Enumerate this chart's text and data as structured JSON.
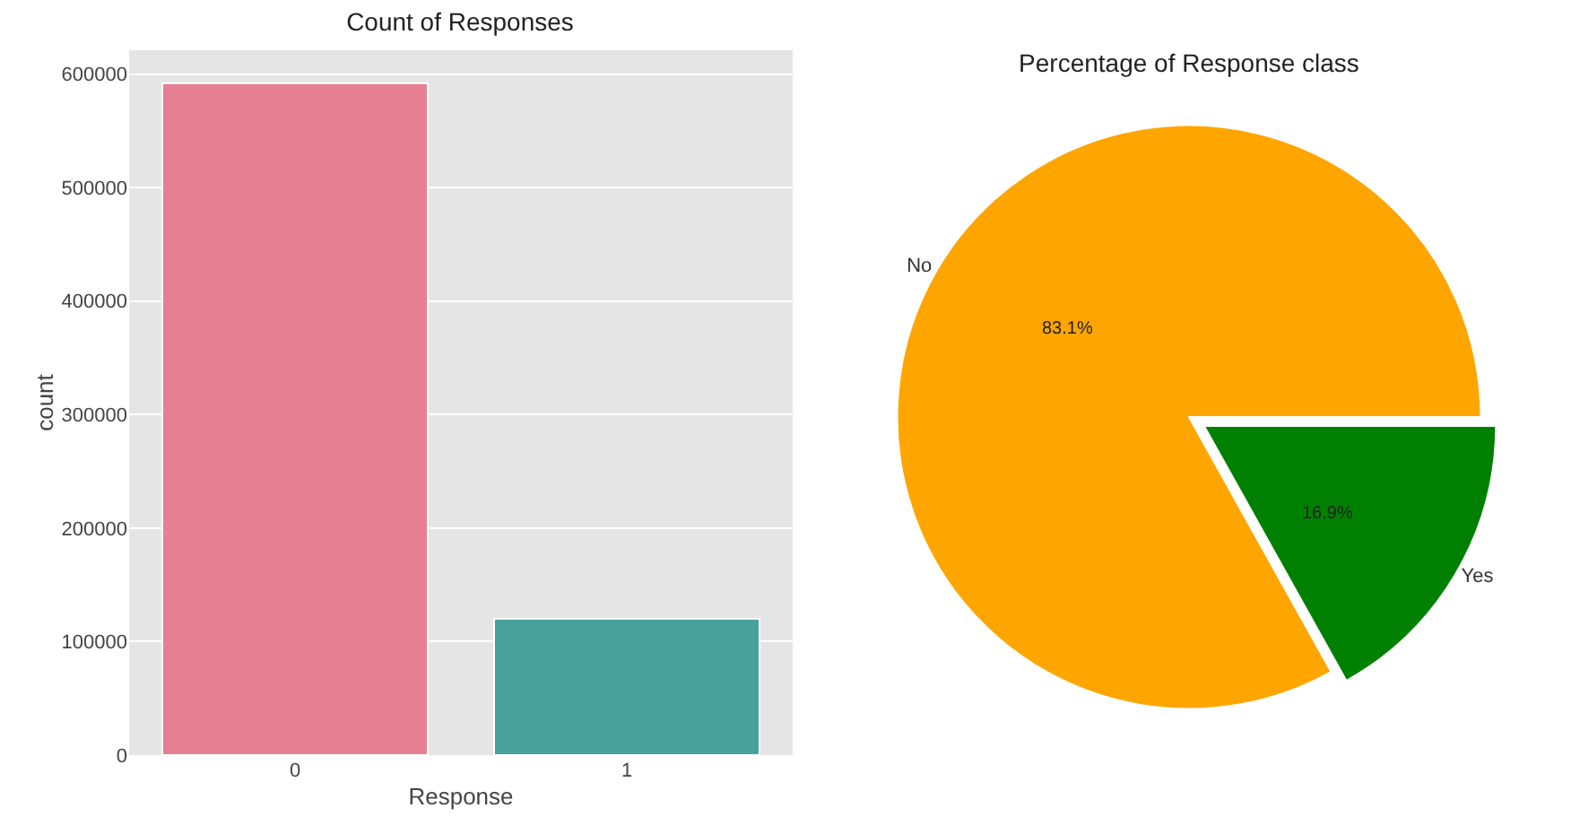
{
  "chart_data": [
    {
      "type": "bar",
      "title": "Count of Responses",
      "xlabel": "Response",
      "ylabel": "count",
      "categories": [
        "0",
        "1"
      ],
      "values": [
        592000,
        120000
      ],
      "colors": [
        "#e77f92",
        "#48a19a"
      ],
      "ylim": [
        0,
        621000
      ],
      "yticks": [
        0,
        100000,
        200000,
        300000,
        400000,
        500000,
        600000
      ],
      "grid": "y"
    },
    {
      "type": "pie",
      "title": "Percentage of Response class",
      "categories": [
        "No",
        "Yes"
      ],
      "values": [
        83.1,
        16.9
      ],
      "colors": [
        "#ffa500",
        "#008000"
      ],
      "value_labels": [
        "83.1%",
        "16.9%"
      ]
    }
  ]
}
